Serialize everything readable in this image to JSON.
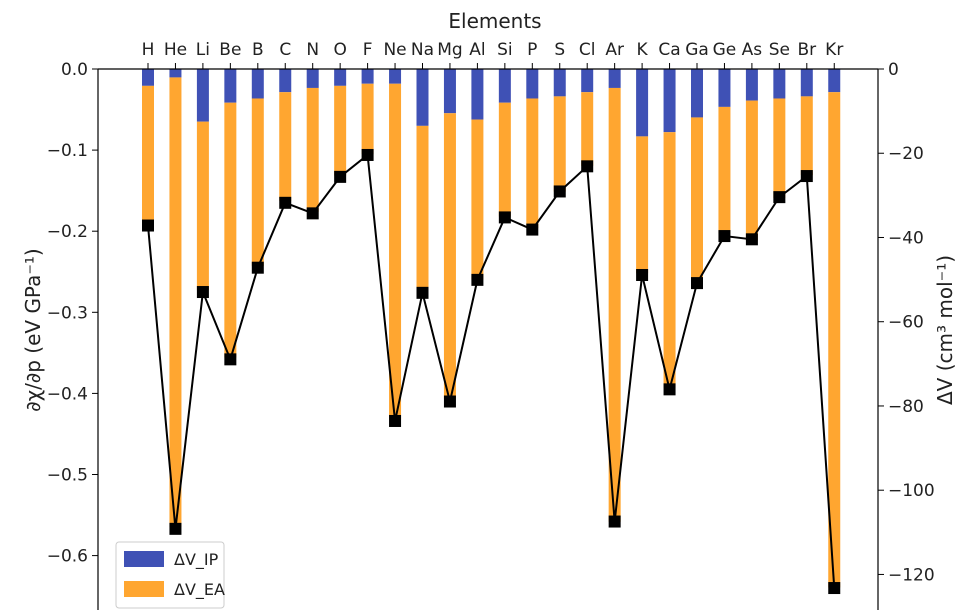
{
  "chart_data": {
    "type": "bar",
    "title": "",
    "categories": [
      "H",
      "He",
      "Li",
      "Be",
      "B",
      "C",
      "N",
      "O",
      "F",
      "Ne",
      "Na",
      "Mg",
      "Al",
      "Si",
      "P",
      "S",
      "Cl",
      "Ar",
      "K",
      "Ca",
      "Ga",
      "Ge",
      "As",
      "Se",
      "Br",
      "Kr"
    ],
    "x_axis": {
      "label": "Elements",
      "position": "top"
    },
    "y_left": {
      "label": "∂χ/∂p (eV GPa⁻¹)",
      "ylim": [
        -0.67,
        0.0
      ],
      "ticks": [
        0.0,
        -0.1,
        -0.2,
        -0.3,
        -0.4,
        -0.5,
        -0.6
      ],
      "tick_labels": [
        "0.0",
        "−0.1",
        "−0.2",
        "−0.3",
        "−0.4",
        "−0.5",
        "−0.6"
      ]
    },
    "y_right": {
      "label": "ΔV (cm³ mol⁻¹)",
      "ylim": [
        -128,
        0
      ],
      "ticks": [
        0,
        -20,
        -40,
        -60,
        -80,
        -100,
        -120
      ],
      "tick_labels": [
        "0",
        "−20",
        "−40",
        "−60",
        "−80",
        "−100",
        "−120"
      ]
    },
    "series": [
      {
        "name": "ΔV_IP",
        "kind": "stacked-bar",
        "axis": "right",
        "color": "#3f51b5",
        "values": [
          -4,
          -2,
          -12.5,
          -8,
          -7,
          -5.5,
          -4.5,
          -4,
          -3.5,
          -3.5,
          -13.5,
          -10.5,
          -12,
          -8,
          -7,
          -6.5,
          -5.5,
          -4.5,
          -16,
          -15,
          -11.5,
          -9,
          -7.5,
          -7,
          -6.5,
          -5.5
        ]
      },
      {
        "name": "ΔV_EA",
        "kind": "stacked-bar",
        "axis": "right",
        "color": "#ffa630",
        "values": [
          -33.5,
          -106.8,
          -40,
          -60.5,
          -39.8,
          -25.8,
          -29.4,
          -21.3,
          -16.7,
          -79.8,
          -39,
          -67.8,
          -38,
          -27,
          -30.8,
          -22.6,
          -17.5,
          -103,
          -32.5,
          -60.7,
          -38.9,
          -30.1,
          -33.2,
          -23.6,
          -18.7,
          -117.6
        ]
      },
      {
        "name": "∂χ/∂p",
        "kind": "line",
        "axis": "left",
        "color": "#000000",
        "marker": "square",
        "values": [
          -0.193,
          -0.567,
          -0.275,
          -0.358,
          -0.245,
          -0.165,
          -0.178,
          -0.133,
          -0.106,
          -0.434,
          -0.276,
          -0.41,
          -0.26,
          -0.183,
          -0.198,
          -0.151,
          -0.12,
          -0.558,
          -0.254,
          -0.395,
          -0.264,
          -0.206,
          -0.21,
          -0.158,
          -0.132,
          -0.64
        ]
      }
    ],
    "legend": {
      "placement": "bottom-left",
      "entries": [
        "ΔV_IP",
        "ΔV_EA"
      ]
    }
  }
}
